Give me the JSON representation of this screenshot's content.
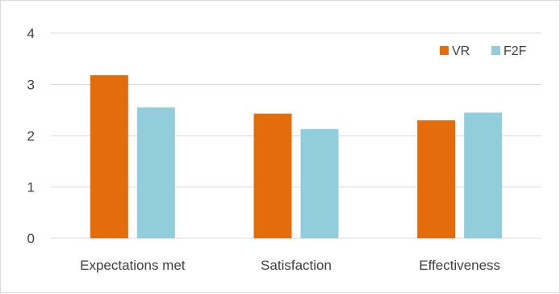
{
  "chart_data": {
    "type": "bar",
    "categories": [
      "Expectations met",
      "Satisfaction",
      "Effectiveness"
    ],
    "series": [
      {
        "name": "VR",
        "values": [
          3.18,
          2.43,
          2.3
        ],
        "color": "#e46c0a"
      },
      {
        "name": "F2F",
        "values": [
          2.55,
          2.13,
          2.45
        ],
        "color": "#92cddc"
      }
    ],
    "ylim": [
      0,
      4
    ],
    "yticks": [
      0,
      1,
      2,
      3,
      4
    ],
    "grid": true,
    "legend_position": "top-right",
    "gridline_color": "#d9d9d9"
  }
}
